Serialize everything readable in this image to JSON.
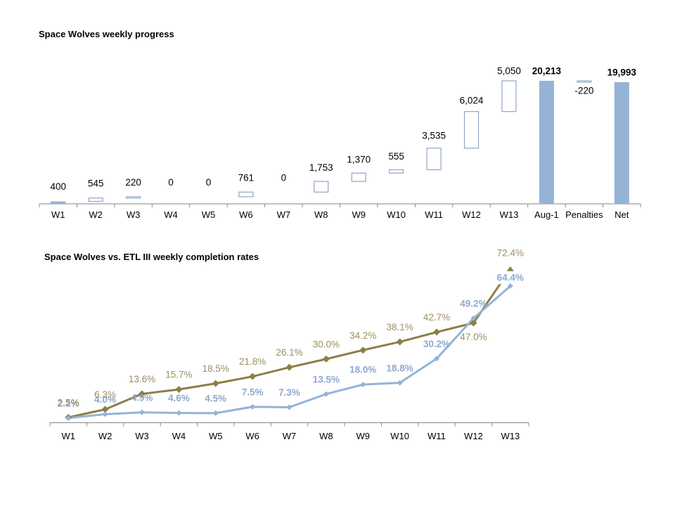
{
  "chart_data": [
    {
      "type": "bar",
      "subtype": "waterfall",
      "title": "Space Wolves weekly progress",
      "xlabel": "",
      "ylabel": "",
      "grid": false,
      "legend": "none",
      "ylim": [
        0,
        22000
      ],
      "categories": [
        "W1",
        "W2",
        "W3",
        "W4",
        "W5",
        "W6",
        "W7",
        "W8",
        "W9",
        "W10",
        "W11",
        "W12",
        "W13",
        "Aug-1",
        "Penalties",
        "Net"
      ],
      "values": [
        400,
        545,
        220,
        0,
        0,
        761,
        0,
        1753,
        1370,
        555,
        3535,
        6024,
        5050,
        20213,
        -220,
        19993
      ],
      "value_labels": [
        "400",
        "545",
        "220",
        "0",
        "0",
        "761",
        "0",
        "1,753",
        "1,370",
        "555",
        "3,535",
        "6,024",
        "5,050",
        "20,213",
        "-220",
        "19,993"
      ],
      "bar_kind": [
        "start",
        "delta",
        "delta",
        "delta",
        "delta",
        "delta",
        "delta",
        "delta",
        "delta",
        "delta",
        "delta",
        "delta",
        "delta",
        "total",
        "delta",
        "total"
      ],
      "colors": {
        "total_fill": "#95B3D7",
        "delta_stroke": "#8DA7C7",
        "delta_fill": "#FFFFFF",
        "axis": "#868686"
      }
    },
    {
      "type": "line",
      "title": "Space Wolves vs. ETL III weekly completion rates",
      "xlabel": "",
      "ylabel": "",
      "grid": false,
      "legend": "none",
      "unit": "%",
      "ylim": [
        0,
        65
      ],
      "categories": [
        "W1",
        "W2",
        "W3",
        "W4",
        "W5",
        "W6",
        "W7",
        "W8",
        "W9",
        "W10",
        "W11",
        "W12",
        "W13"
      ],
      "series": [
        {
          "name": "",
          "color": "#95B3D7",
          "label_color": "#8EA9CF",
          "values": [
            2.2,
            4.0,
            4.9,
            4.6,
            4.5,
            7.5,
            7.3,
            13.5,
            18.0,
            18.8,
            30.2,
            49.2,
            64.4
          ],
          "labels": [
            "2.2%",
            "4.0%",
            "4.9%",
            "4.6%",
            "4.5%",
            "7.5%",
            "7.3%",
            "13.5%",
            "18.0%",
            "18.8%",
            "30.2%",
            "49.2%",
            "64.4%"
          ]
        },
        {
          "name": "",
          "color": "#8C7E47",
          "label_color": "#9B8F5F",
          "values": [
            2.5,
            6.3,
            13.6,
            15.7,
            18.5,
            21.8,
            26.1,
            30.0,
            34.2,
            38.1,
            42.7,
            47.0,
            72.4
          ],
          "labels": [
            "2.5%",
            "6.3%",
            "13.6%",
            "15.7%",
            "18.5%",
            "21.8%",
            "26.1%",
            "30.0%",
            "34.2%",
            "38.1%",
            "42.7%",
            "47.0%",
            "72.4%"
          ]
        }
      ],
      "colors": {
        "axis": "#868686"
      }
    }
  ]
}
